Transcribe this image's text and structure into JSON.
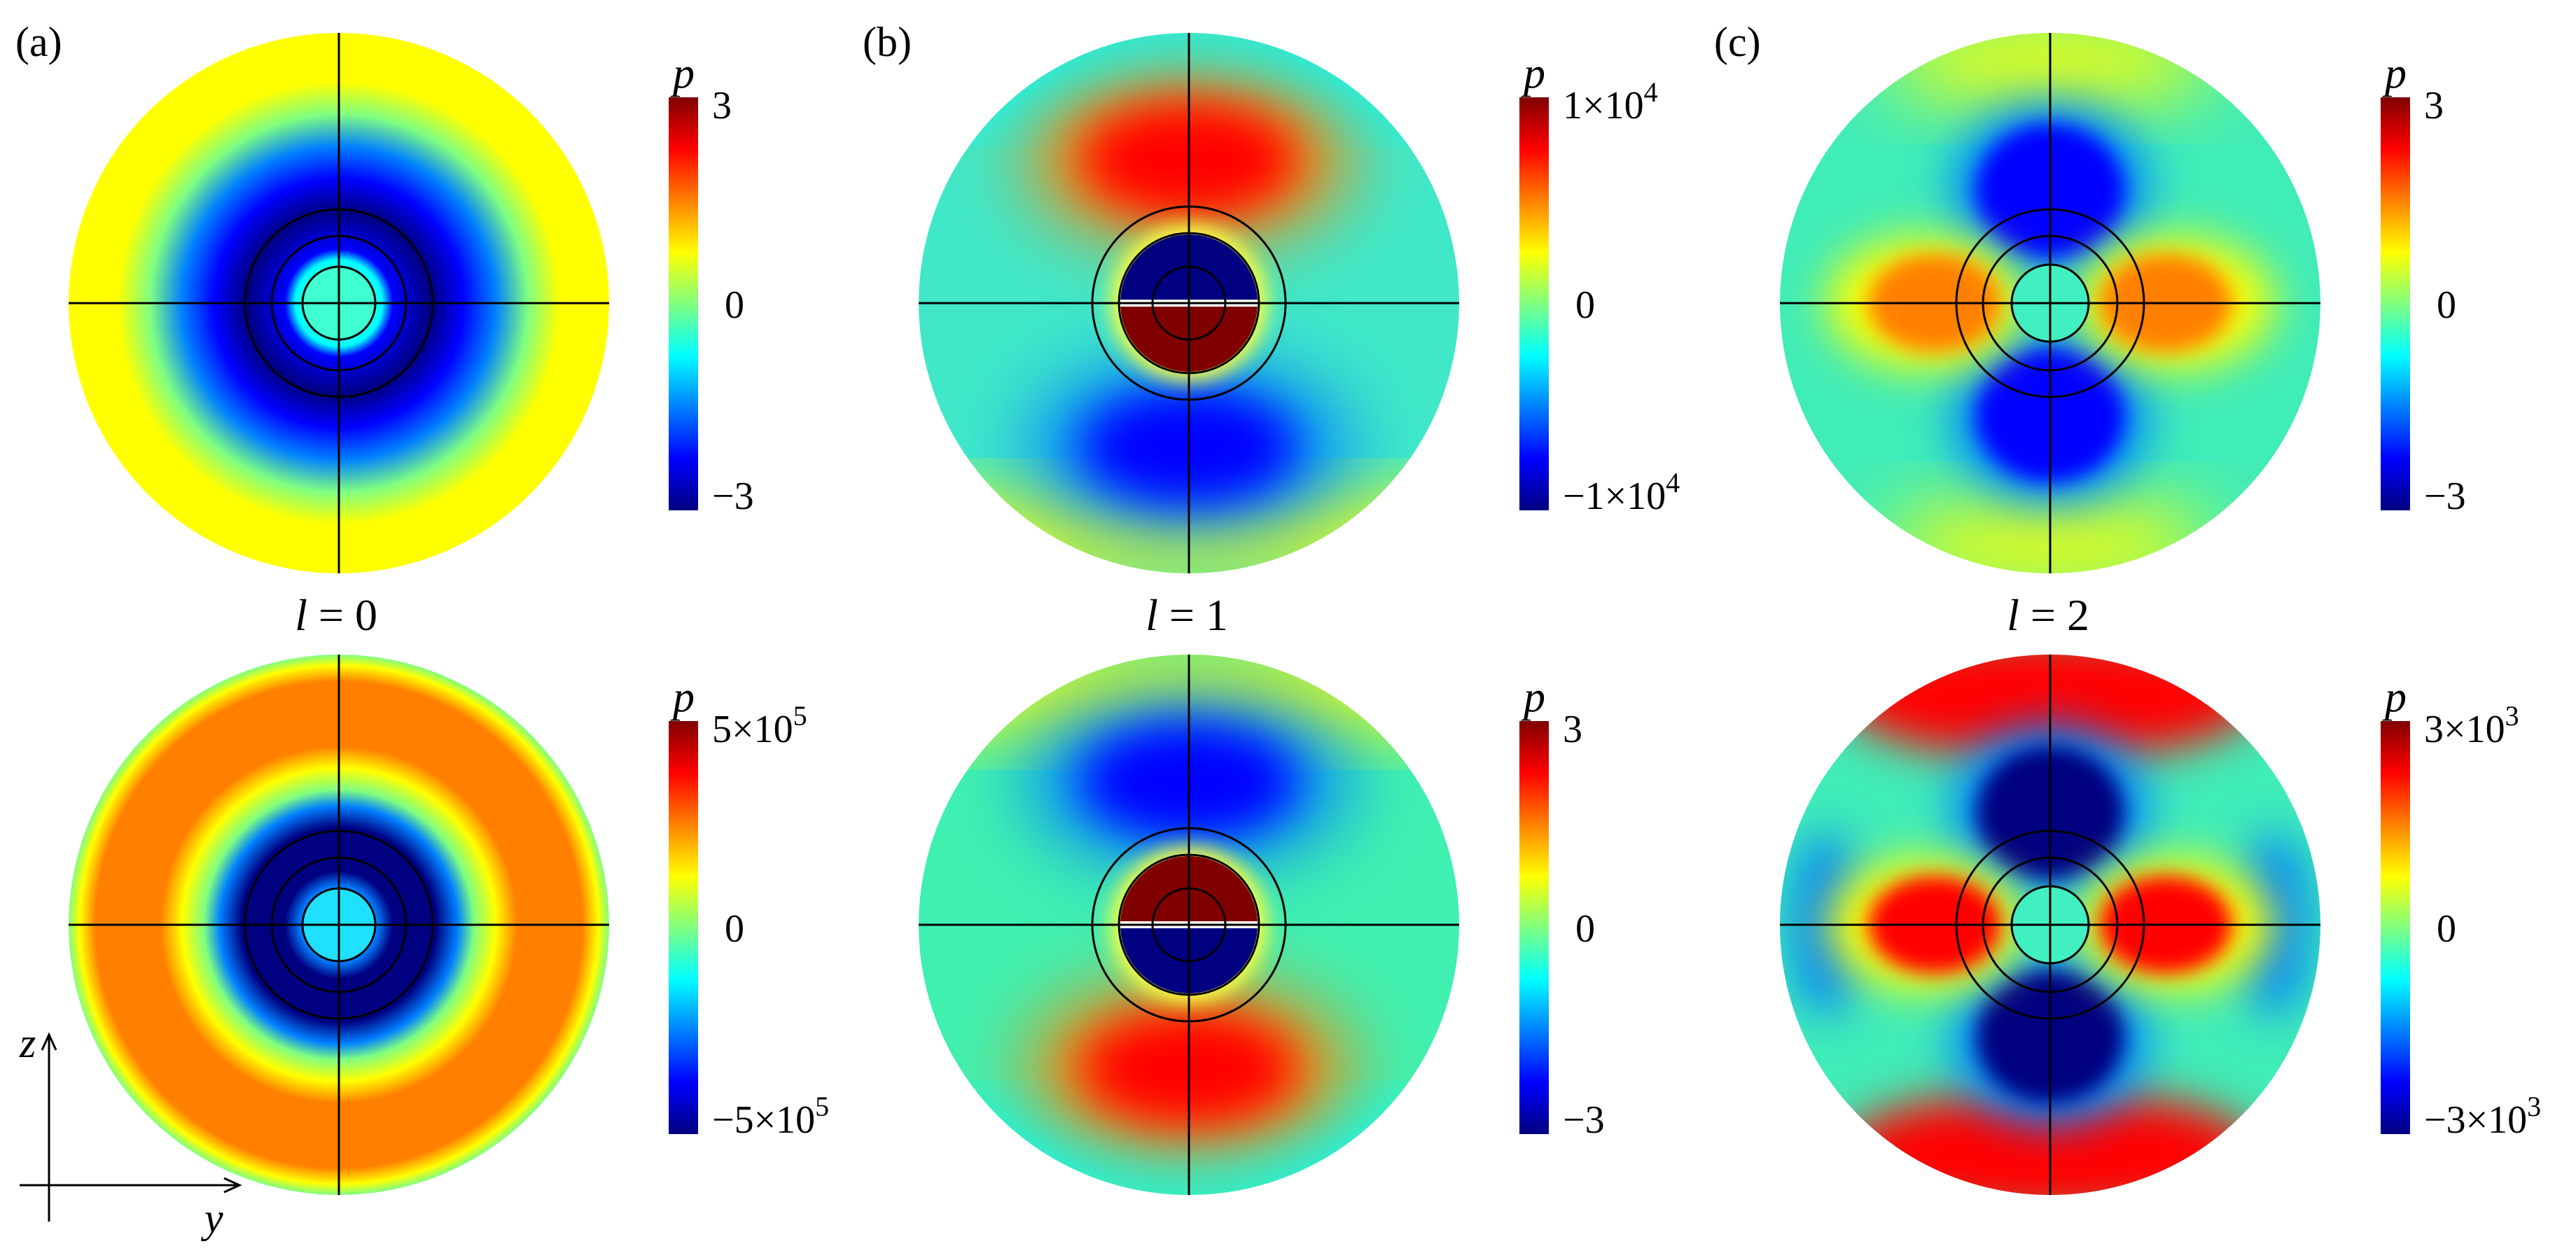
{
  "colormap": [
    "#000080",
    "#0000ff",
    "#0080ff",
    "#00ffff",
    "#80ff80",
    "#ffff00",
    "#ff8000",
    "#ff0000",
    "#800000"
  ],
  "colorbar_title": "p",
  "axes": {
    "vertical": "z",
    "horizontal": "y"
  },
  "columns": [
    {
      "label": "(a)",
      "caption_sym": "l",
      "caption_eq": " = 0"
    },
    {
      "label": "(b)",
      "caption_sym": "l",
      "caption_eq": " = 1"
    },
    {
      "label": "(c)",
      "caption_sym": "l",
      "caption_eq": " = 2"
    }
  ],
  "panels": [
    {
      "id": "a-top",
      "mode": 0,
      "variant": "top",
      "colorbar": {
        "max": {
          "base": "3",
          "exp": ""
        },
        "zero": "0",
        "min": {
          "base": "−3",
          "exp": ""
        }
      }
    },
    {
      "id": "b-top",
      "mode": 1,
      "variant": "top",
      "colorbar": {
        "max": {
          "base": "1×10",
          "exp": "4"
        },
        "zero": "0",
        "min": {
          "base": "−1×10",
          "exp": "4"
        }
      }
    },
    {
      "id": "c-top",
      "mode": 2,
      "variant": "top",
      "colorbar": {
        "max": {
          "base": "3",
          "exp": ""
        },
        "zero": "0",
        "min": {
          "base": "−3",
          "exp": ""
        }
      }
    },
    {
      "id": "a-bottom",
      "mode": 0,
      "variant": "bottom",
      "colorbar": {
        "max": {
          "base": "5×10",
          "exp": "5"
        },
        "zero": "0",
        "min": {
          "base": "−5×10",
          "exp": "5"
        }
      }
    },
    {
      "id": "b-bottom",
      "mode": 1,
      "variant": "bottom",
      "colorbar": {
        "max": {
          "base": "3",
          "exp": ""
        },
        "zero": "0",
        "min": {
          "base": "−3",
          "exp": ""
        }
      }
    },
    {
      "id": "c-bottom",
      "mode": 2,
      "variant": "bottom",
      "colorbar": {
        "max": {
          "base": "3×10",
          "exp": "3"
        },
        "zero": "0",
        "min": {
          "base": "−3×10",
          "exp": "3"
        }
      }
    }
  ]
}
